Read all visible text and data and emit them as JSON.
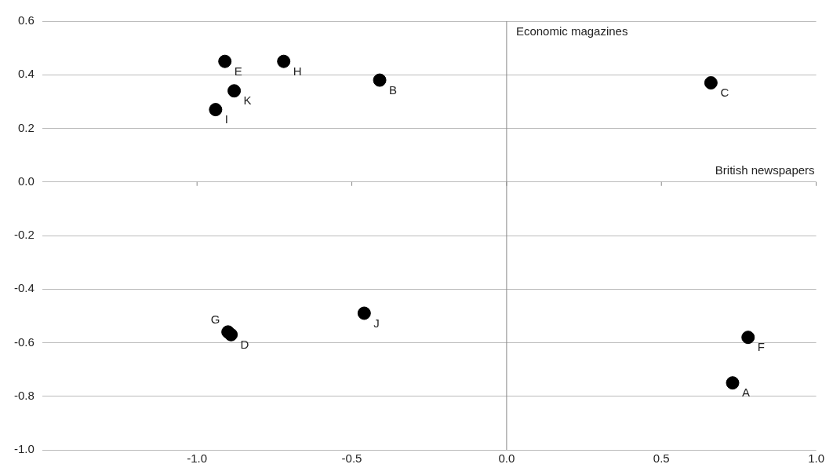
{
  "chart_data": {
    "type": "scatter",
    "xlabel": "British newspapers",
    "ylabel": "Economic magazines",
    "x": [
      0.73,
      -0.41,
      0.66,
      -0.89,
      -0.91,
      0.78,
      -0.9,
      -0.72,
      -0.94,
      -0.46,
      -0.88
    ],
    "values": [
      -0.75,
      0.38,
      0.37,
      -0.57,
      0.45,
      -0.58,
      -0.56,
      0.45,
      0.27,
      -0.49,
      0.34
    ],
    "value_labels": [
      "A",
      "B",
      "C",
      "D",
      "E",
      "F",
      "G",
      "H",
      "I",
      "J",
      "K"
    ],
    "color": "#000000",
    "marker": "circle",
    "xlim": [
      -1.5,
      1.0
    ],
    "xticks": [
      {
        "value": -1,
        "label": "-1.0"
      },
      -0.5,
      {
        "value": 0,
        "label": "0.0"
      },
      0.5,
      {
        "value": 1,
        "label": "1.0"
      }
    ],
    "ylim": [
      -1.0,
      0.6
    ],
    "yticks": [
      {
        "value": -1,
        "label": "-1.0"
      },
      -0.8,
      -0.6,
      -0.4,
      -0.2,
      {
        "value": 0,
        "label": "0.0"
      },
      0.2,
      0.4,
      0.6
    ],
    "grid": "y",
    "legend": false,
    "ref_lines": [
      {
        "axis": "x",
        "value": 0,
        "color": "#888888"
      }
    ]
  }
}
